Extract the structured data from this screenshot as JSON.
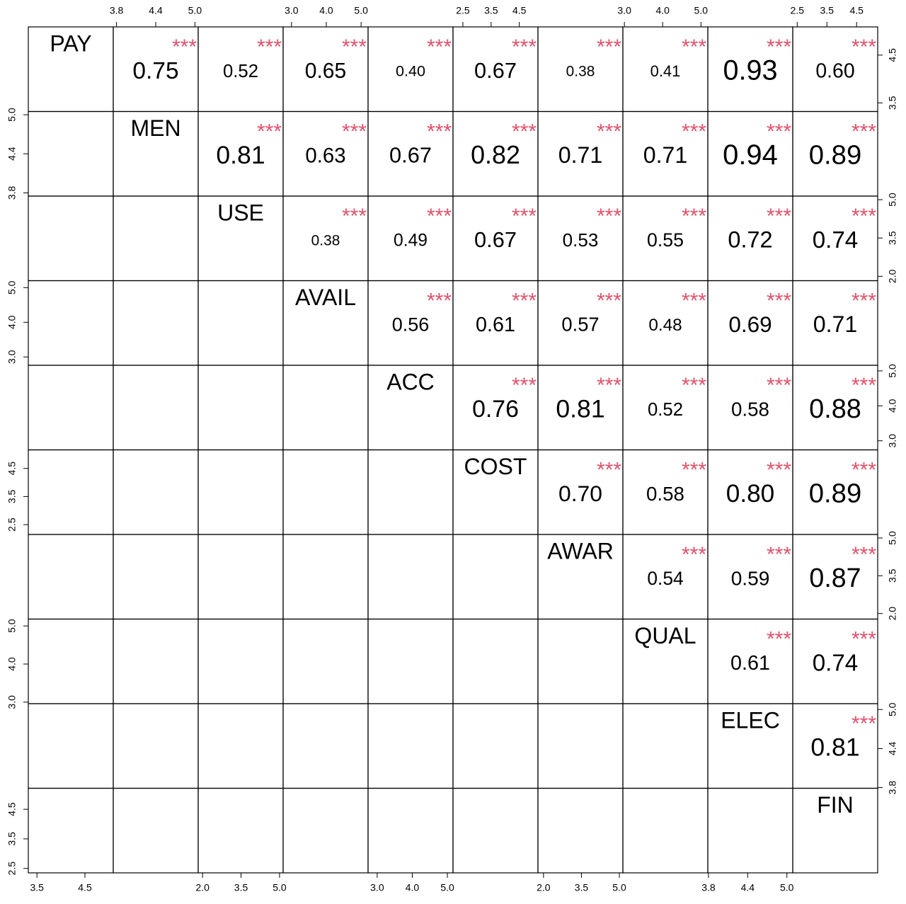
{
  "chart_data": {
    "type": "correlation-matrix",
    "variables": [
      {
        "name": "PAY",
        "lim": [
          3.32,
          5.09
        ],
        "ticks": [
          3.5,
          4.5
        ]
      },
      {
        "name": "MEN",
        "lim": [
          3.75,
          5.05
        ],
        "ticks": [
          3.8,
          4.4,
          {
            "value": 5,
            "label": "5.0"
          }
        ]
      },
      {
        "name": "USE",
        "lim": [
          1.83,
          5.14
        ],
        "ticks": [
          {
            "value": 2,
            "label": "2.0"
          },
          3.5,
          {
            "value": 5,
            "label": "5.0"
          }
        ]
      },
      {
        "name": "AVAIL",
        "lim": [
          2.76,
          5.2
        ],
        "ticks": [
          {
            "value": 3,
            "label": "3.0"
          },
          {
            "value": 4,
            "label": "4.0"
          },
          {
            "value": 5,
            "label": "5.0"
          }
        ]
      },
      {
        "name": "ACC",
        "lim": [
          2.74,
          5.16
        ],
        "ticks": [
          {
            "value": 3,
            "label": "3.0"
          },
          {
            "value": 4,
            "label": "4.0"
          },
          {
            "value": 5,
            "label": "5.0"
          }
        ]
      },
      {
        "name": "COST",
        "lim": [
          2.15,
          5.16
        ],
        "ticks": [
          2.5,
          3.5,
          4.5
        ]
      },
      {
        "name": "AWAR",
        "lim": [
          1.78,
          5.14
        ],
        "ticks": [
          {
            "value": 2,
            "label": "2.0"
          },
          3.5,
          {
            "value": 5,
            "label": "5.0"
          }
        ]
      },
      {
        "name": "QUAL",
        "lim": [
          2.96,
          5.18
        ],
        "ticks": [
          {
            "value": 3,
            "label": "3.0"
          },
          {
            "value": 4,
            "label": "4.0"
          },
          {
            "value": 5,
            "label": "5.0"
          }
        ]
      },
      {
        "name": "ELEC",
        "lim": [
          3.79,
          5.09
        ],
        "ticks": [
          3.8,
          4.4,
          {
            "value": 5,
            "label": "5.0"
          }
        ]
      },
      {
        "name": "FIN",
        "lim": [
          2.35,
          5.21
        ],
        "ticks": [
          2.5,
          3.5,
          4.5
        ]
      }
    ],
    "correlations": [
      [
        0.75,
        0.52,
        0.65,
        0.4,
        0.67,
        0.38,
        0.41,
        0.93,
        0.6
      ],
      [
        0.81,
        0.63,
        0.67,
        0.82,
        0.71,
        0.71,
        0.94,
        0.89
      ],
      [
        0.38,
        0.49,
        0.67,
        0.53,
        0.55,
        0.72,
        0.74
      ],
      [
        0.56,
        0.61,
        0.57,
        0.48,
        0.69,
        0.71
      ],
      [
        0.76,
        0.81,
        0.52,
        0.58,
        0.88
      ],
      [
        0.7,
        0.58,
        0.8,
        0.89
      ],
      [
        0.54,
        0.59,
        0.87
      ],
      [
        0.61,
        0.74
      ],
      [
        0.81
      ]
    ],
    "value_labels": [
      [
        "0.75",
        "0.52",
        "0.65",
        "0.40",
        "0.67",
        "0.38",
        "0.41",
        "0.93",
        "0.60"
      ],
      [
        "0.81",
        "0.63",
        "0.67",
        "0.82",
        "0.71",
        "0.71",
        "0.94",
        "0.89"
      ],
      [
        "0.38",
        "0.49",
        "0.67",
        "0.53",
        "0.55",
        "0.72",
        "0.74"
      ],
      [
        "0.56",
        "0.61",
        "0.57",
        "0.48",
        "0.69",
        "0.71"
      ],
      [
        "0.76",
        "0.81",
        "0.52",
        "0.58",
        "0.88"
      ],
      [
        "0.70",
        "0.58",
        "0.80",
        "0.89"
      ],
      [
        "0.54",
        "0.59",
        "0.87"
      ],
      [
        "0.61",
        "0.74"
      ],
      [
        "0.81"
      ]
    ],
    "significance": [
      [
        "***",
        "***",
        "***",
        "***",
        "***",
        "***",
        "***",
        "***",
        "***"
      ],
      [
        "***",
        "***",
        "***",
        "***",
        "***",
        "***",
        "***",
        "***"
      ],
      [
        "***",
        "***",
        "***",
        "***",
        "***",
        "***",
        "***"
      ],
      [
        "***",
        "***",
        "***",
        "***",
        "***",
        "***"
      ],
      [
        "***",
        "***",
        "***",
        "***",
        "***"
      ],
      [
        "***",
        "***",
        "***",
        "***"
      ],
      [
        "***",
        "***",
        "***"
      ],
      [
        "***",
        "***"
      ],
      [
        "***"
      ]
    ],
    "significance_color": "#DF536B"
  }
}
